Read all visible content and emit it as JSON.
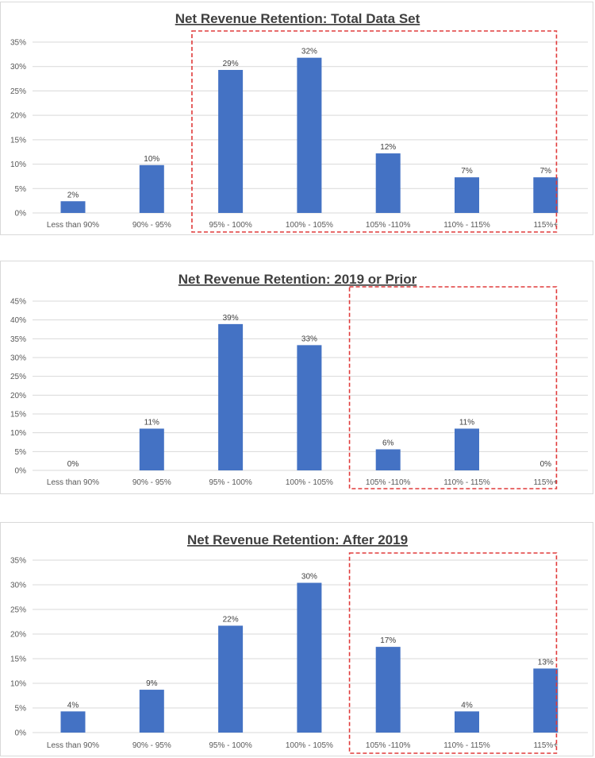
{
  "chart_data": [
    {
      "type": "bar",
      "title": "Net Revenue Retention: Total Data Set",
      "categories": [
        "Less than 90%",
        "90% - 95%",
        "95% - 100%",
        "100% - 105%",
        "105% -110%",
        "110% - 115%",
        "115%+"
      ],
      "values": [
        2.4,
        9.8,
        29.3,
        31.8,
        12.2,
        7.3,
        7.3
      ],
      "data_labels": [
        "2%",
        "10%",
        "29%",
        "32%",
        "12%",
        "7%",
        "7%"
      ],
      "y_ticks": [
        "0%",
        "5%",
        "10%",
        "15%",
        "20%",
        "25%",
        "30%",
        "35%"
      ],
      "ylim": [
        0,
        35
      ],
      "grid": true,
      "highlight": {
        "from": "95% - 100%",
        "to": "115%+",
        "style": "red dashed box"
      },
      "bar_color": "#4472c4"
    },
    {
      "type": "bar",
      "title": "Net Revenue Retention: 2019 or Prior",
      "categories": [
        "Less than 90%",
        "90% - 95%",
        "95% - 100%",
        "100% - 105%",
        "105% -110%",
        "110% - 115%",
        "115%+"
      ],
      "values": [
        0,
        11.1,
        38.9,
        33.3,
        5.6,
        11.1,
        0
      ],
      "data_labels": [
        "0%",
        "11%",
        "39%",
        "33%",
        "6%",
        "11%",
        "0%"
      ],
      "y_ticks": [
        "0%",
        "5%",
        "10%",
        "15%",
        "20%",
        "25%",
        "30%",
        "35%",
        "40%",
        "45%"
      ],
      "ylim": [
        0,
        45
      ],
      "grid": true,
      "highlight": {
        "from": "105% -110%",
        "to": "115%+",
        "style": "red dashed box"
      },
      "bar_color": "#4472c4"
    },
    {
      "type": "bar",
      "title": "Net Revenue Retention: After 2019",
      "categories": [
        "Less than 90%",
        "90% - 95%",
        "95% - 100%",
        "100% - 105%",
        "105% -110%",
        "110% - 115%",
        "115%+"
      ],
      "values": [
        4.3,
        8.7,
        21.7,
        30.4,
        17.4,
        4.3,
        13.0
      ],
      "data_labels": [
        "4%",
        "9%",
        "22%",
        "30%",
        "17%",
        "4%",
        "13%"
      ],
      "y_ticks": [
        "0%",
        "5%",
        "10%",
        "15%",
        "20%",
        "25%",
        "30%",
        "35%"
      ],
      "ylim": [
        0,
        35
      ],
      "grid": true,
      "highlight": {
        "from": "105% -110%",
        "to": "115%+",
        "style": "red dashed box"
      },
      "bar_color": "#4472c4"
    }
  ]
}
